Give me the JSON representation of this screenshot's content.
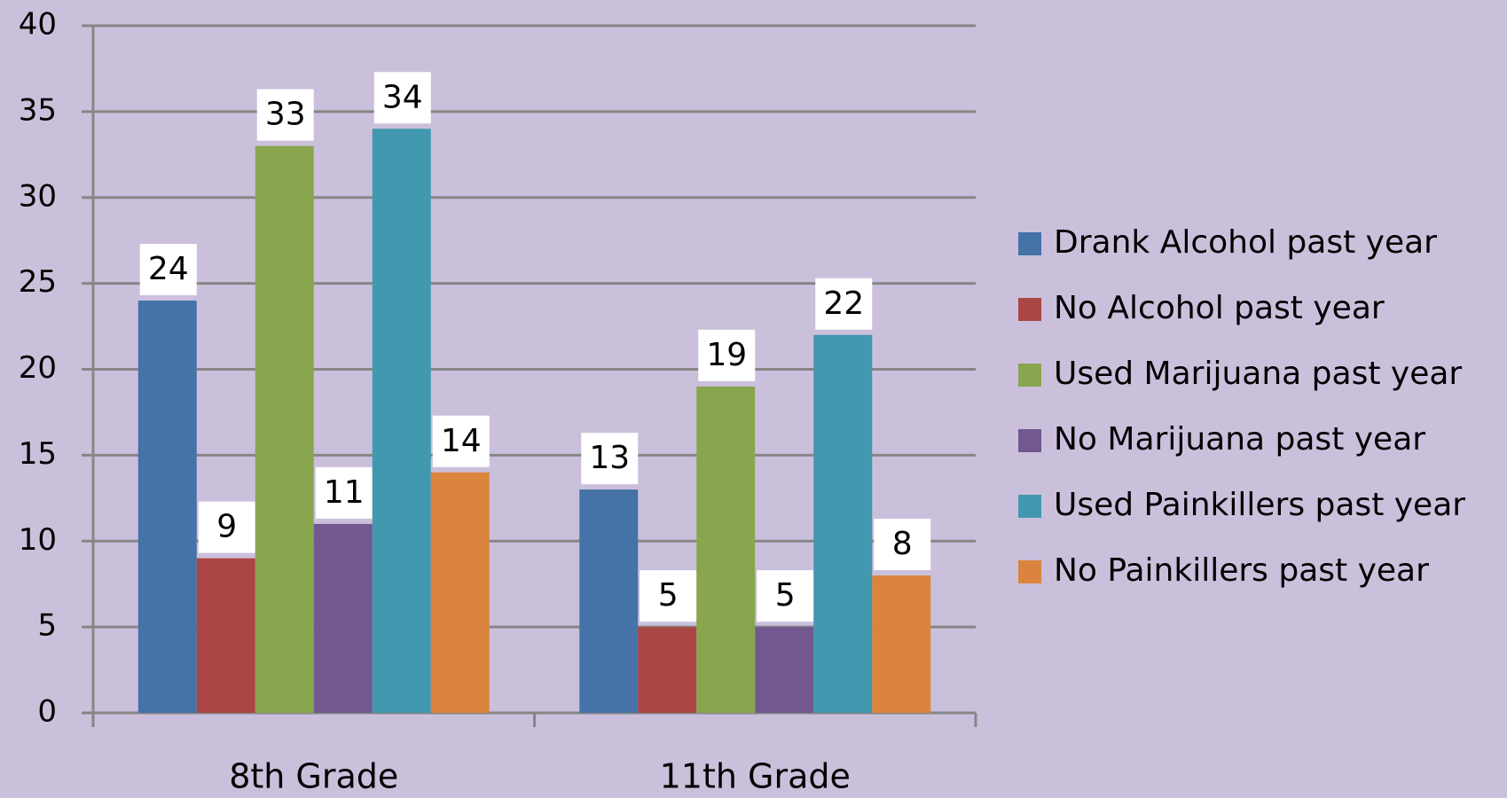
{
  "chart_data": {
    "type": "bar",
    "categories": [
      "8th Grade",
      "11th Grade"
    ],
    "series": [
      {
        "name": "Drank Alcohol past year",
        "color": "#4572a7",
        "values": [
          24,
          13
        ]
      },
      {
        "name": "No Alcohol past year",
        "color": "#aa4643",
        "values": [
          9,
          5
        ]
      },
      {
        "name": "Used Marijuana past year",
        "color": "#89a54e",
        "values": [
          33,
          19
        ]
      },
      {
        "name": "No Marijuana past year",
        "color": "#71588f",
        "values": [
          11,
          5
        ]
      },
      {
        "name": "Used Painkillers past year",
        "color": "#4198af",
        "values": [
          34,
          22
        ]
      },
      {
        "name": "No Painkillers past year",
        "color": "#db843d",
        "values": [
          14,
          8
        ]
      }
    ],
    "ylim": [
      0,
      40
    ],
    "yticks": [
      0,
      5,
      10,
      15,
      20,
      25,
      30,
      35,
      40
    ],
    "grid": true,
    "legend": "right"
  }
}
